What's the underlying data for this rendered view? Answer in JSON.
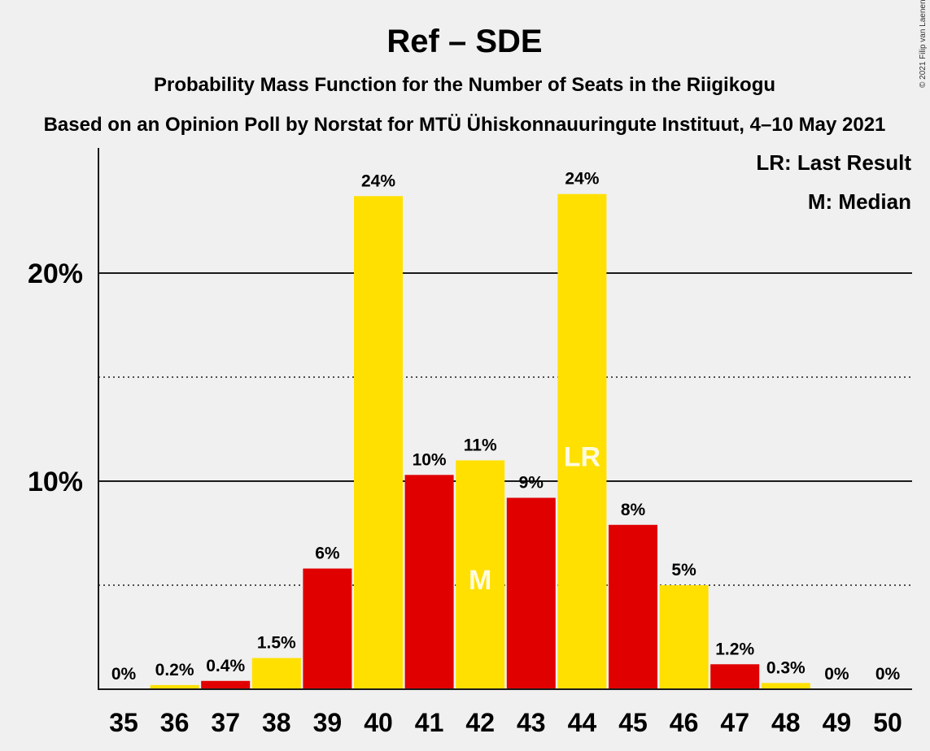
{
  "title": "Ref – SDE",
  "subtitle": "Probability Mass Function for the Number of Seats in the Riigikogu",
  "subtitle2": "Based on an Opinion Poll by Norstat for MTÜ Ühiskonnauuringute Instituut, 4–10 May 2021",
  "copyright": "© 2021 Filip van Laenen",
  "legend": {
    "lr": "LR: Last Result",
    "m": "M: Median"
  },
  "colors": {
    "red": "#e00000",
    "yellow": "#ffe000",
    "axis": "#1a1a1a"
  },
  "chart_data": {
    "type": "bar",
    "categories": [
      "35",
      "36",
      "37",
      "38",
      "39",
      "40",
      "41",
      "42",
      "43",
      "44",
      "45",
      "46",
      "47",
      "48",
      "49",
      "50"
    ],
    "values": [
      0,
      0.2,
      0.4,
      1.5,
      5.8,
      23.7,
      10.3,
      11.0,
      9.2,
      23.8,
      7.9,
      5.0,
      1.2,
      0.3,
      0,
      0
    ],
    "labels": [
      "0%",
      "0.2%",
      "0.4%",
      "1.5%",
      "6%",
      "24%",
      "10%",
      "11%",
      "9%",
      "24%",
      "8%",
      "5%",
      "1.2%",
      "0.3%",
      "0%",
      "0%"
    ],
    "bar_colors": [
      "yellow",
      "yellow",
      "red",
      "yellow",
      "red",
      "yellow",
      "red",
      "yellow",
      "red",
      "yellow",
      "red",
      "yellow",
      "red",
      "yellow",
      "red",
      "yellow"
    ],
    "yticks": [
      {
        "value": 10,
        "label": "10%"
      },
      {
        "value": 20,
        "label": "20%"
      }
    ],
    "minor_gridlines": [
      5,
      15
    ],
    "ylim": [
      0,
      26
    ],
    "markers": [
      {
        "category": "42",
        "text": "M"
      },
      {
        "category": "44",
        "text": "LR"
      }
    ],
    "xlabel": "",
    "ylabel": "",
    "grid": true,
    "legend_position": "top-right"
  }
}
